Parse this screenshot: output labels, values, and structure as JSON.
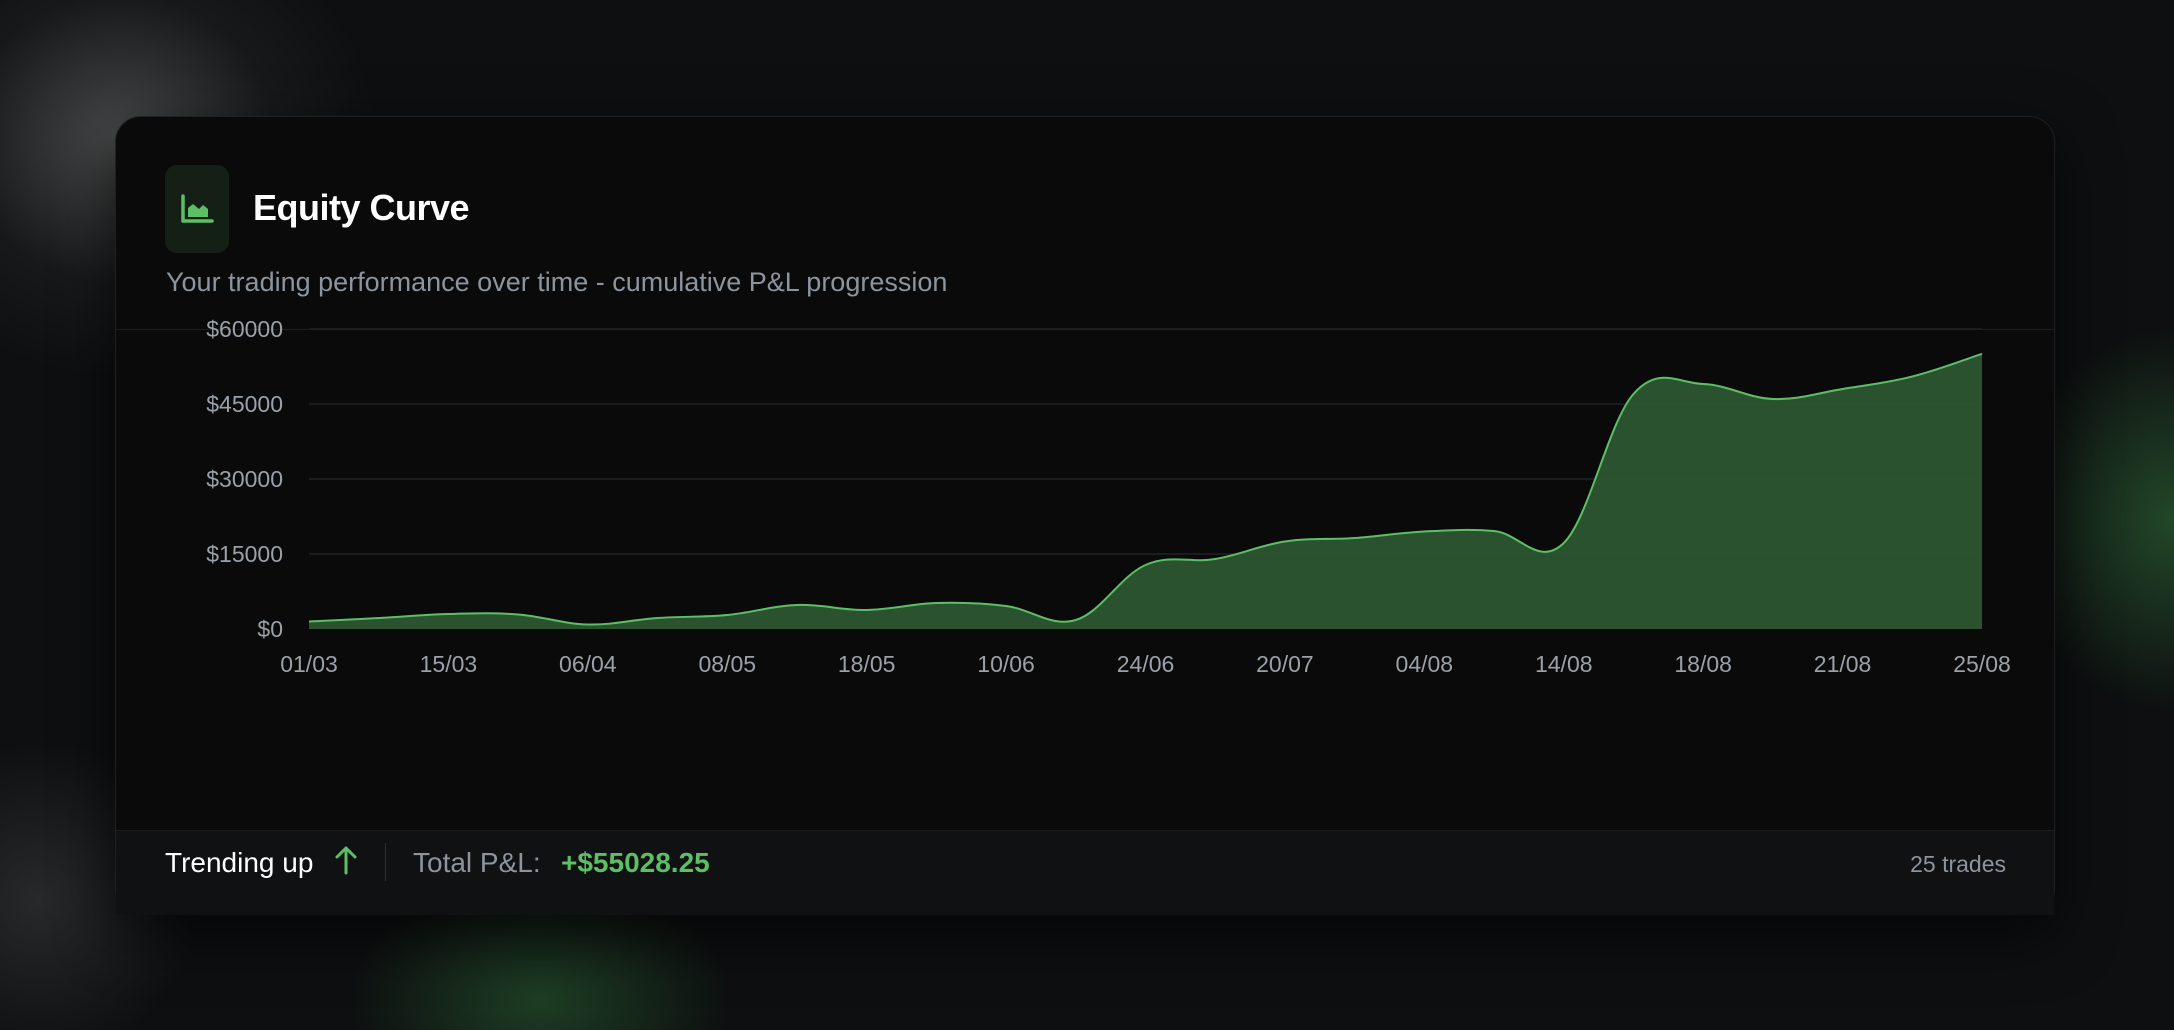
{
  "card": {
    "title": "Equity Curve",
    "subtitle": "Your trading performance over time - cumulative P&L progression",
    "icon": "area-chart-icon"
  },
  "footer": {
    "trend_label": "Trending up",
    "trend_icon": "arrow-up-icon",
    "pnl_label": "Total P&L:",
    "pnl_value": "+$55028.25",
    "trades": "25 trades"
  },
  "colors": {
    "accent": "#5cbf66",
    "area_fill": "#2d5632",
    "card_bg": "#0a0a0a"
  },
  "chart_data": {
    "type": "area",
    "title": "",
    "xlabel": "",
    "ylabel": "",
    "ylim": [
      0,
      60000
    ],
    "yticks": [
      "$0",
      "$15000",
      "$30000",
      "$45000",
      "$60000"
    ],
    "ytick_values": [
      0,
      15000,
      30000,
      45000,
      60000
    ],
    "xtick_labels": [
      "01/03",
      "15/03",
      "06/04",
      "08/05",
      "18/05",
      "10/06",
      "24/06",
      "20/07",
      "04/08",
      "14/08",
      "18/08",
      "21/08",
      "25/08"
    ],
    "grid": true,
    "series": [
      {
        "values": [
          1500,
          2200,
          3000,
          2900,
          900,
          2200,
          2800,
          4800,
          3800,
          5200,
          4600,
          1800,
          12800,
          14000,
          17500,
          18200,
          19500,
          19600,
          17200,
          47000,
          49000,
          46000,
          48000,
          50500,
          55028.25
        ]
      }
    ]
  }
}
